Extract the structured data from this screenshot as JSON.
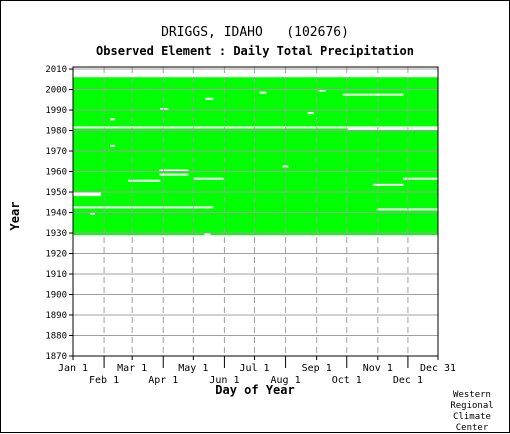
{
  "title": "DRIGGS, IDAHO   (102676)",
  "subtitle": "Observed Element : Daily Total Precipitation",
  "credit": "Western\nRegional\nClimate\nCenter",
  "colors": {
    "data": "#00ff00",
    "grid": "#a0a0a0",
    "axis": "#000000",
    "missing": "#ffffff"
  },
  "chart_data": {
    "type": "heatmap",
    "title": "DRIGGS, IDAHO   (102676)",
    "subtitle": "Observed Element : Daily Total Precipitation",
    "xlabel": "Day of Year",
    "ylabel": "Year",
    "xlim": [
      1,
      365
    ],
    "ylim": [
      1870,
      2011
    ],
    "grid": true,
    "x_ticks": [
      {
        "label": "Jan 1",
        "day": 1,
        "row": 0
      },
      {
        "label": "Feb 1",
        "day": 32,
        "row": 1
      },
      {
        "label": "Mar 1",
        "day": 60,
        "row": 0
      },
      {
        "label": "Apr 1",
        "day": 91,
        "row": 1
      },
      {
        "label": "May 1",
        "day": 121,
        "row": 0
      },
      {
        "label": "Jun 1",
        "day": 152,
        "row": 1
      },
      {
        "label": "Jul 1",
        "day": 182,
        "row": 0
      },
      {
        "label": "Aug 1",
        "day": 213,
        "row": 1
      },
      {
        "label": "Sep 1",
        "day": 244,
        "row": 0
      },
      {
        "label": "Oct 1",
        "day": 274,
        "row": 1
      },
      {
        "label": "Nov 1",
        "day": 305,
        "row": 0
      },
      {
        "label": "Dec 1",
        "day": 335,
        "row": 1
      },
      {
        "label": "Dec 31",
        "day": 365,
        "row": 0
      }
    ],
    "y_ticks": [
      1870,
      1880,
      1890,
      1900,
      1910,
      1920,
      1930,
      1940,
      1950,
      1960,
      1970,
      1980,
      1990,
      2000,
      2010
    ],
    "record": {
      "start_year": 1929,
      "end_year": 2005,
      "status": "observed"
    },
    "missing_periods": [
      {
        "year": 1981,
        "start_day": 1,
        "end_day": 365
      },
      {
        "year": 1980,
        "start_day": 275,
        "end_day": 365
      },
      {
        "year": 1942,
        "start_day": 1,
        "end_day": 140
      },
      {
        "year": 1941,
        "start_day": 304,
        "end_day": 365
      },
      {
        "year": 1948,
        "start_day": 1,
        "end_day": 28
      },
      {
        "year": 1949,
        "start_day": 1,
        "end_day": 28
      },
      {
        "year": 1955,
        "start_day": 56,
        "end_day": 87
      },
      {
        "year": 1956,
        "start_day": 121,
        "end_day": 150
      },
      {
        "year": 1958,
        "start_day": 87,
        "end_day": 115
      },
      {
        "year": 1960,
        "start_day": 87,
        "end_day": 115
      },
      {
        "year": 1953,
        "start_day": 300,
        "end_day": 330
      },
      {
        "year": 1956,
        "start_day": 330,
        "end_day": 365
      },
      {
        "year": 1997,
        "start_day": 270,
        "end_day": 330
      },
      {
        "year": 1990,
        "start_day": 88,
        "end_day": 95
      },
      {
        "year": 1988,
        "start_day": 235,
        "end_day": 240
      },
      {
        "year": 1962,
        "start_day": 210,
        "end_day": 215
      },
      {
        "year": 1995,
        "start_day": 133,
        "end_day": 140
      },
      {
        "year": 1998,
        "start_day": 187,
        "end_day": 193
      },
      {
        "year": 1999,
        "start_day": 246,
        "end_day": 252
      },
      {
        "year": 1981,
        "start_day": 5,
        "end_day": 20
      },
      {
        "year": 1972,
        "start_day": 38,
        "end_day": 42
      },
      {
        "year": 1985,
        "start_day": 38,
        "end_day": 42
      },
      {
        "year": 1939,
        "start_day": 18,
        "end_day": 22
      },
      {
        "year": 1929,
        "start_day": 132,
        "end_day": 137
      }
    ]
  }
}
